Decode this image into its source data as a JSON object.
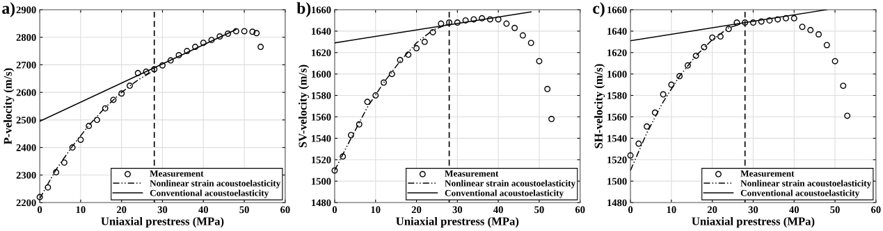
{
  "chart_data": [
    {
      "type": "scatter",
      "title": "a)",
      "xlabel": "Uniaxial prestress (MPa)",
      "ylabel": "P-velocity (m/s)",
      "xlim": [
        0,
        60
      ],
      "xticks": [
        0,
        10,
        20,
        30,
        40,
        50,
        60
      ],
      "ylim": [
        2200,
        2900
      ],
      "yticks": [
        2200,
        2300,
        2400,
        2500,
        2600,
        2700,
        2800,
        2900
      ],
      "grid": true,
      "legend": "bottom right",
      "ref_lines": [
        {
          "axis": "x",
          "value": 28,
          "color": "#000000",
          "line_style": "dashed"
        }
      ],
      "series": [
        {
          "name": "Measurement",
          "type": "scatter",
          "marker": "circle",
          "color": "#000000",
          "x": [
            0,
            2,
            4,
            6,
            8,
            10,
            12,
            14,
            16,
            18,
            20,
            22,
            24,
            26,
            28,
            30,
            32,
            34,
            36,
            38,
            40,
            42,
            44,
            46,
            48,
            50,
            52,
            53,
            54
          ],
          "values": [
            2220,
            2255,
            2310,
            2345,
            2400,
            2428,
            2478,
            2500,
            2542,
            2573,
            2596,
            2624,
            2670,
            2675,
            2684,
            2698,
            2716,
            2735,
            2750,
            2765,
            2780,
            2790,
            2803,
            2813,
            2822,
            2822,
            2820,
            2815,
            2765
          ]
        },
        {
          "name": "Nonlinear strain acoustoelasticity",
          "type": "line",
          "line_style": "dashdot",
          "color": "#000000",
          "x": [
            0,
            4,
            8,
            12,
            16,
            20,
            24,
            28
          ],
          "values": [
            2215,
            2320,
            2405,
            2480,
            2545,
            2600,
            2645,
            2680
          ]
        },
        {
          "name": "Conventional acoustoelasticity",
          "type": "line",
          "line_style": "solid",
          "color": "#000000",
          "x": [
            0,
            48
          ],
          "values": [
            2495,
            2828
          ]
        }
      ]
    },
    {
      "type": "scatter",
      "title": "b)",
      "xlabel": "Uniaxial prestress (MPa)",
      "ylabel": "SV-velocity (m/s)",
      "xlim": [
        0,
        60
      ],
      "xticks": [
        0,
        10,
        20,
        30,
        40,
        50,
        60
      ],
      "ylim": [
        1480,
        1660
      ],
      "yticks": [
        1480,
        1500,
        1520,
        1540,
        1560,
        1580,
        1600,
        1620,
        1640,
        1660
      ],
      "grid": true,
      "legend": "bottom right",
      "ref_lines": [
        {
          "axis": "x",
          "value": 28,
          "color": "#000000",
          "line_style": "dashed"
        }
      ],
      "series": [
        {
          "name": "Measurement",
          "type": "scatter",
          "marker": "circle",
          "color": "#000000",
          "x": [
            0,
            2,
            4,
            6,
            8,
            10,
            12,
            14,
            16,
            18,
            20,
            22,
            24,
            26,
            28,
            30,
            32,
            34,
            36,
            38,
            40,
            42,
            44,
            46,
            48,
            50,
            52,
            53
          ],
          "values": [
            1510,
            1523,
            1543,
            1553,
            1574,
            1580,
            1592,
            1600,
            1613,
            1618,
            1624,
            1630,
            1639,
            1647,
            1648,
            1648,
            1650,
            1651,
            1652,
            1651,
            1651,
            1647,
            1643,
            1636,
            1629,
            1612,
            1586,
            1558
          ]
        },
        {
          "name": "Nonlinear strain acoustoelasticity",
          "type": "line",
          "line_style": "dashdot",
          "color": "#000000",
          "x": [
            0,
            4,
            8,
            12,
            16,
            20,
            24,
            28
          ],
          "values": [
            1510,
            1540,
            1569,
            1592,
            1612,
            1629,
            1641,
            1647
          ]
        },
        {
          "name": "Conventional acoustoelasticity",
          "type": "line",
          "line_style": "solid",
          "color": "#000000",
          "x": [
            0,
            48
          ],
          "values": [
            1629,
            1658
          ]
        }
      ]
    },
    {
      "type": "scatter",
      "title": "c)",
      "xlabel": "Uniaxial prestress (MPa)",
      "ylabel": "SH-velocity (m/s)",
      "xlim": [
        0,
        60
      ],
      "xticks": [
        0,
        10,
        20,
        30,
        40,
        50,
        60
      ],
      "ylim": [
        1480,
        1660
      ],
      "yticks": [
        1480,
        1500,
        1520,
        1540,
        1560,
        1580,
        1600,
        1620,
        1640,
        1660
      ],
      "grid": true,
      "legend": "bottom right",
      "ref_lines": [
        {
          "axis": "x",
          "value": 28,
          "color": "#000000",
          "line_style": "dashed"
        }
      ],
      "series": [
        {
          "name": "Measurement",
          "type": "scatter",
          "marker": "circle",
          "color": "#000000",
          "x": [
            0,
            2,
            4,
            6,
            8,
            10,
            12,
            14,
            16,
            18,
            20,
            22,
            24,
            26,
            28,
            30,
            32,
            34,
            36,
            38,
            40,
            42,
            44,
            46,
            48,
            50,
            52,
            53
          ],
          "values": [
            1524,
            1535,
            1551,
            1564,
            1581,
            1590,
            1598,
            1608,
            1617,
            1625,
            1634,
            1635,
            1642,
            1648,
            1648,
            1648,
            1649,
            1650,
            1651,
            1652,
            1652,
            1644,
            1641,
            1637,
            1627,
            1612,
            1589,
            1561
          ]
        },
        {
          "name": "Nonlinear strain acoustoelasticity",
          "type": "line",
          "line_style": "dashdot",
          "color": "#000000",
          "x": [
            0,
            4,
            8,
            12,
            16,
            20,
            24,
            28
          ],
          "values": [
            1510,
            1545,
            1574,
            1598,
            1617,
            1632,
            1643,
            1648
          ]
        },
        {
          "name": "Conventional acoustoelasticity",
          "type": "line",
          "line_style": "solid",
          "color": "#000000",
          "x": [
            0,
            48
          ],
          "values": [
            1631,
            1660
          ]
        }
      ]
    }
  ]
}
